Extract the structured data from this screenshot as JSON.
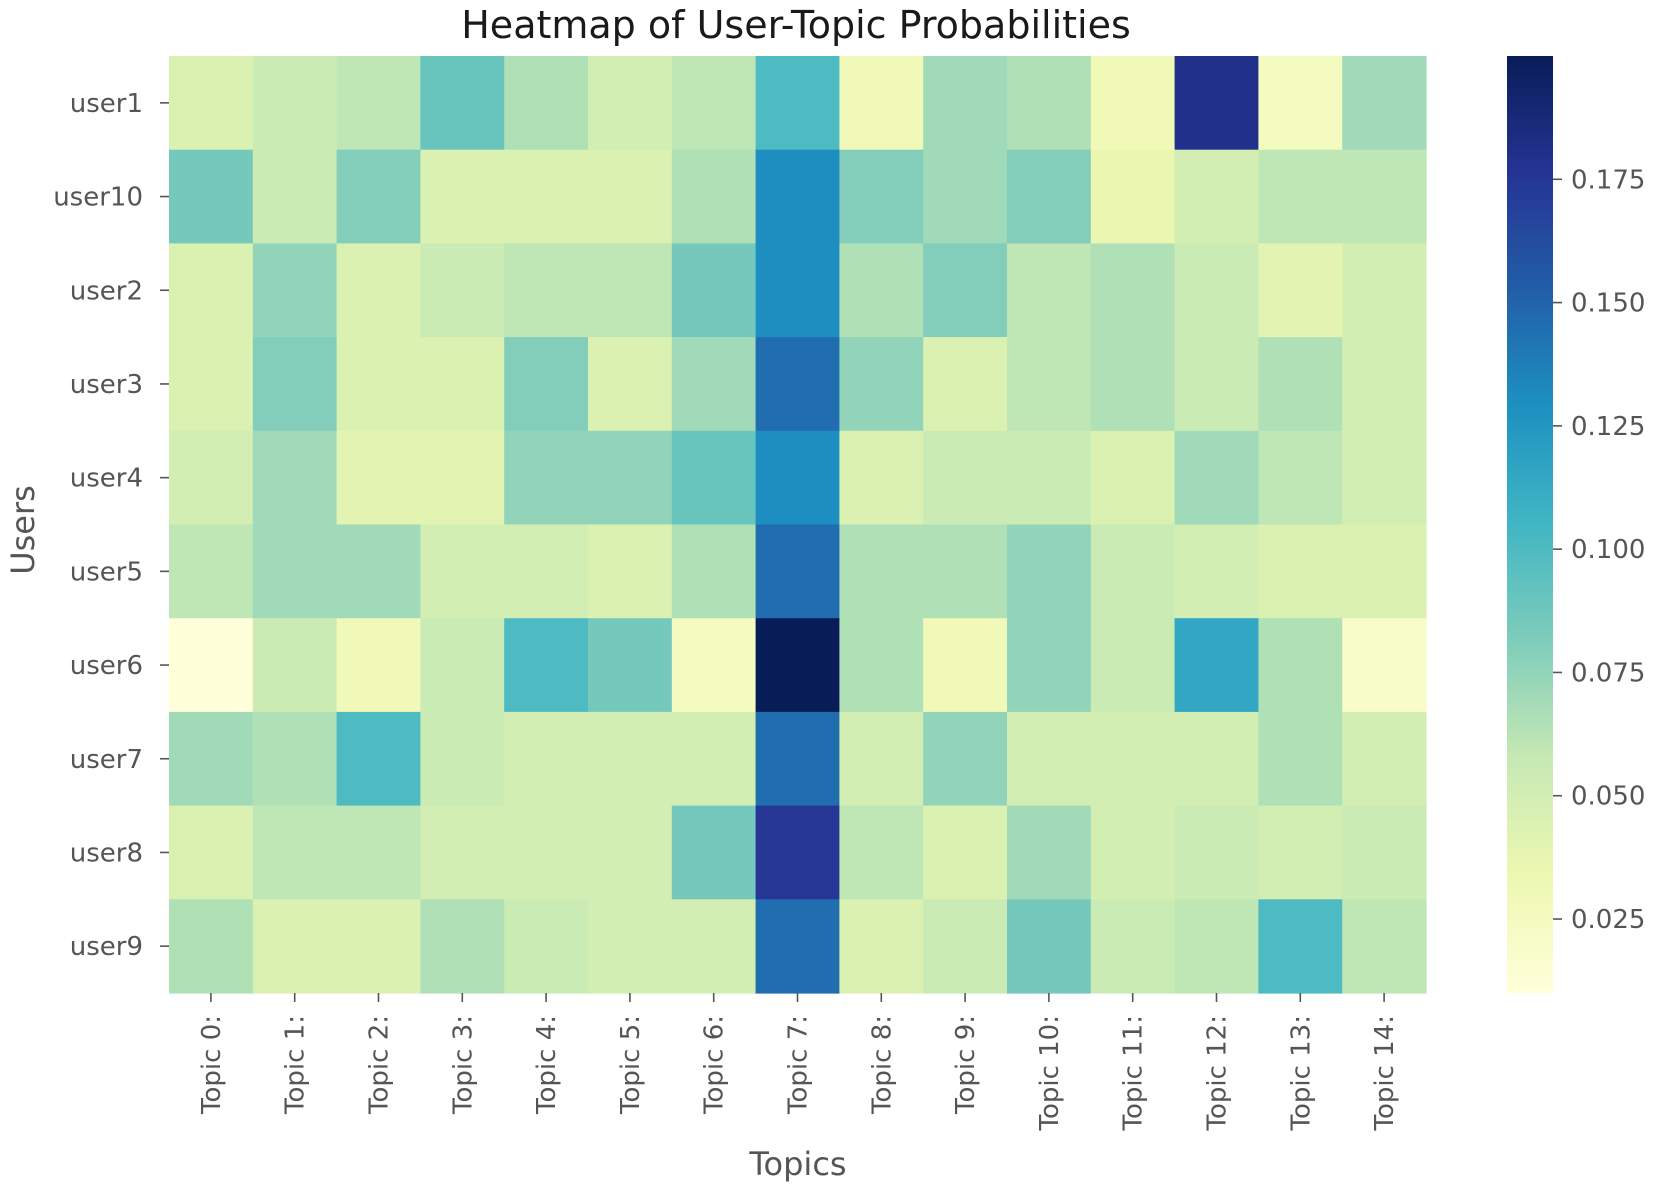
{
  "chart_data": {
    "type": "heatmap",
    "title": "Heatmap of User-Topic Probabilities",
    "xlabel": "Topics",
    "ylabel": "Users",
    "x_categories": [
      "Topic 0:",
      "Topic 1:",
      "Topic 2:",
      "Topic 3:",
      "Topic 4:",
      "Topic 5:",
      "Topic 6:",
      "Topic 7:",
      "Topic 8:",
      "Topic 9:",
      "Topic 10:",
      "Topic 11:",
      "Topic 12:",
      "Topic 13:",
      "Topic 14:"
    ],
    "y_categories": [
      "user1",
      "user10",
      "user2",
      "user3",
      "user4",
      "user5",
      "user6",
      "user7",
      "user8",
      "user9"
    ],
    "values": [
      [
        0.045,
        0.055,
        0.06,
        0.09,
        0.065,
        0.05,
        0.06,
        0.1,
        0.03,
        0.07,
        0.065,
        0.03,
        0.18,
        0.025,
        0.07
      ],
      [
        0.085,
        0.055,
        0.08,
        0.045,
        0.045,
        0.045,
        0.065,
        0.13,
        0.08,
        0.07,
        0.08,
        0.035,
        0.05,
        0.06,
        0.06
      ],
      [
        0.045,
        0.075,
        0.045,
        0.055,
        0.06,
        0.06,
        0.085,
        0.13,
        0.065,
        0.08,
        0.06,
        0.065,
        0.055,
        0.04,
        0.05
      ],
      [
        0.045,
        0.08,
        0.045,
        0.045,
        0.08,
        0.045,
        0.07,
        0.145,
        0.075,
        0.045,
        0.06,
        0.065,
        0.055,
        0.065,
        0.05
      ],
      [
        0.05,
        0.07,
        0.04,
        0.04,
        0.075,
        0.075,
        0.09,
        0.13,
        0.045,
        0.055,
        0.055,
        0.045,
        0.07,
        0.06,
        0.05
      ],
      [
        0.06,
        0.07,
        0.07,
        0.05,
        0.05,
        0.045,
        0.065,
        0.145,
        0.065,
        0.065,
        0.075,
        0.055,
        0.05,
        0.045,
        0.045
      ],
      [
        0.01,
        0.055,
        0.03,
        0.055,
        0.1,
        0.085,
        0.025,
        0.2,
        0.065,
        0.03,
        0.075,
        0.055,
        0.115,
        0.065,
        0.02
      ],
      [
        0.07,
        0.065,
        0.1,
        0.055,
        0.05,
        0.05,
        0.05,
        0.145,
        0.05,
        0.075,
        0.05,
        0.05,
        0.05,
        0.065,
        0.05
      ],
      [
        0.045,
        0.06,
        0.06,
        0.05,
        0.05,
        0.05,
        0.085,
        0.175,
        0.06,
        0.045,
        0.07,
        0.05,
        0.055,
        0.05,
        0.055
      ],
      [
        0.065,
        0.045,
        0.045,
        0.065,
        0.055,
        0.05,
        0.05,
        0.145,
        0.045,
        0.055,
        0.085,
        0.055,
        0.06,
        0.1,
        0.06
      ]
    ],
    "colorbar": {
      "colormap": "YlGnBu",
      "range": [
        0.01,
        0.2
      ],
      "ticks": [
        0.025,
        0.05,
        0.075,
        0.1,
        0.125,
        0.15,
        0.175
      ],
      "tick_labels": [
        "0.025",
        "0.050",
        "0.075",
        "0.100",
        "0.125",
        "0.150",
        "0.175"
      ]
    },
    "grid": false,
    "legend": "colorbar-right"
  }
}
